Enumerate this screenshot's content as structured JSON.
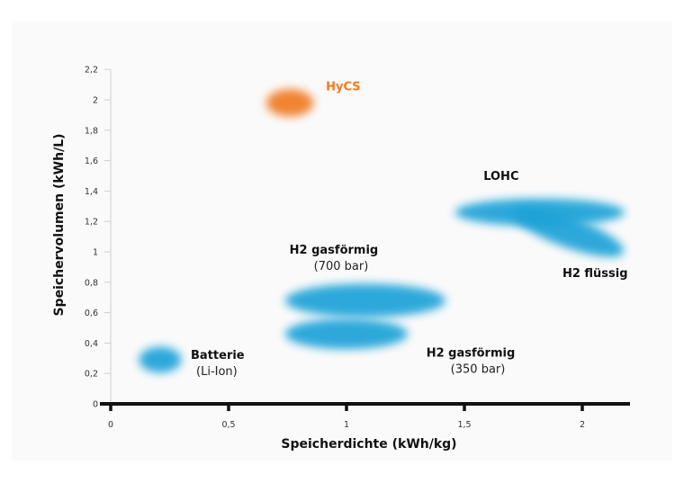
{
  "chart_data": {
    "type": "scatter",
    "title": "",
    "xlabel": "Speicherdichte (kWh/kg)",
    "ylabel": "Speichervolumen (kWh/L)",
    "xlim": [
      0,
      2.2
    ],
    "ylim": [
      0,
      2.2
    ],
    "grid": false,
    "x_ticks": [
      {
        "value": 0,
        "label": "0"
      },
      {
        "value": 0.5,
        "label": "0,5"
      },
      {
        "value": 1,
        "label": "1"
      },
      {
        "value": 1.5,
        "label": "1,5"
      },
      {
        "value": 2,
        "label": "2"
      }
    ],
    "y_ticks": [
      {
        "value": 0,
        "label": "0"
      },
      {
        "value": 0.2,
        "label": "0,2"
      },
      {
        "value": 0.4,
        "label": "0,4"
      },
      {
        "value": 0.6,
        "label": "0,6"
      },
      {
        "value": 0.8,
        "label": "0,8"
      },
      {
        "value": 1,
        "label": "1"
      },
      {
        "value": 1.2,
        "label": "1,2"
      },
      {
        "value": 1.4,
        "label": "1,4"
      },
      {
        "value": 1.6,
        "label": "1,6"
      },
      {
        "value": 1.8,
        "label": "1,8"
      },
      {
        "value": 2,
        "label": "2"
      },
      {
        "value": 2.2,
        "label": "2,2"
      }
    ],
    "points": [
      {
        "name": "HyCS",
        "label_line1": "HyCS",
        "label_line2": "",
        "x": 0.76,
        "y": 1.98,
        "x_spread": 0.1,
        "y_spread": 0.09,
        "rotate": 0,
        "color": "#f07a22",
        "highlight": true
      },
      {
        "name": "Batterie",
        "label_line1": "Batterie",
        "label_line2": "(Li-Ion)",
        "x": 0.21,
        "y": 0.29,
        "x_spread": 0.09,
        "y_spread": 0.085,
        "rotate": 0,
        "color": "#1ea2d8",
        "highlight": false
      },
      {
        "name": "H2 gasförmig (700 bar)",
        "label_line1": "H2 gasförmig",
        "label_line2": "(700 bar)",
        "x": 1.08,
        "y": 0.68,
        "x_spread": 0.34,
        "y_spread": 0.11,
        "rotate": 0,
        "color": "#1ea2d8",
        "highlight": false
      },
      {
        "name": "H2 gasförmig (350 bar)",
        "label_line1": "H2 gasförmig",
        "label_line2": "(350 bar)",
        "x": 1.0,
        "y": 0.46,
        "x_spread": 0.26,
        "y_spread": 0.1,
        "rotate": 0,
        "color": "#1ea2d8",
        "highlight": false
      },
      {
        "name": "LOHC",
        "label_line1": "LOHC",
        "label_line2": "",
        "x": 1.82,
        "y": 1.26,
        "x_spread": 0.36,
        "y_spread": 0.09,
        "rotate": 0,
        "color": "#1ea2d8",
        "highlight": false
      },
      {
        "name": "H2 flüssig",
        "label_line1": "H2 flüssig",
        "label_line2": "",
        "x": 1.94,
        "y": 1.13,
        "x_spread": 0.25,
        "y_spread": 0.1,
        "rotate": 20,
        "color": "#1ea2d8",
        "highlight": false
      }
    ]
  }
}
